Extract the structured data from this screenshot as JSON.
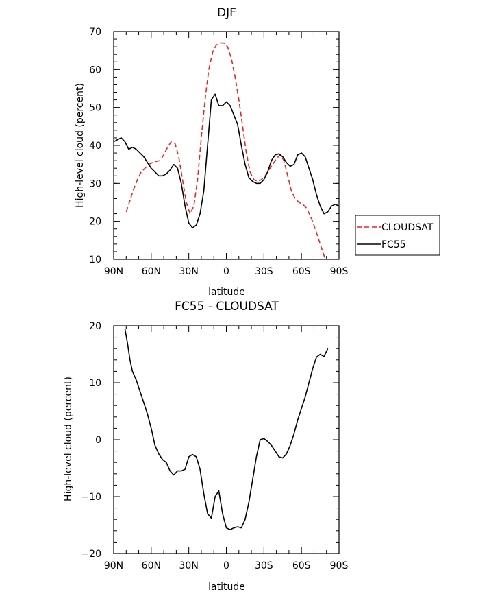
{
  "chart_data": [
    {
      "type": "line",
      "title": "DJF",
      "xlabel": "latitude",
      "ylabel": "High-level cloud (percent)",
      "xlim": [
        90,
        -90
      ],
      "ylim": [
        10,
        70
      ],
      "xticks": [
        90,
        60,
        30,
        0,
        -30,
        -60,
        -90
      ],
      "xtick_labels": [
        "90N",
        "60N",
        "30N",
        "0",
        "30S",
        "60S",
        "90S"
      ],
      "yticks": [
        10,
        20,
        30,
        40,
        50,
        60,
        70
      ],
      "ytick_labels": [
        "10",
        "20",
        "30",
        "40",
        "50",
        "60",
        "70"
      ],
      "grid": false,
      "legend": "right",
      "series": [
        {
          "name": "CLOUDSAT",
          "color": "#e8242a",
          "style": "dashed",
          "x": [
            80,
            77,
            74,
            71,
            68,
            65,
            62,
            59,
            56,
            53,
            50,
            47,
            44,
            41,
            38,
            35,
            32,
            29,
            26,
            23,
            20,
            17,
            14,
            11,
            8,
            5,
            2,
            -1,
            -4,
            -7,
            -10,
            -13,
            -16,
            -19,
            -22,
            -25,
            -28,
            -31,
            -34,
            -37,
            -40,
            -43,
            -46,
            -49,
            -52,
            -55,
            -58,
            -61,
            -64,
            -67,
            -70,
            -73,
            -76,
            -79,
            -81
          ],
          "y": [
            22.5,
            25.5,
            28.5,
            31,
            33,
            34,
            35,
            35.5,
            35.8,
            36,
            37.5,
            39.5,
            41,
            40.5,
            37,
            31,
            25,
            22,
            24,
            31,
            42,
            52,
            60,
            64.5,
            66.5,
            67,
            67,
            66,
            63,
            58,
            52,
            45,
            38,
            33,
            31,
            30.5,
            31,
            32,
            33.5,
            35,
            36.5,
            37.5,
            36,
            32,
            28,
            26,
            25,
            24.5,
            23.5,
            21.5,
            19,
            16,
            13,
            10,
            9
          ]
        },
        {
          "name": "FC55",
          "color": "#000000",
          "style": "solid",
          "x": [
            90,
            87,
            84,
            81,
            78,
            75,
            72,
            69,
            66,
            63,
            60,
            57,
            54,
            51,
            48,
            45,
            42,
            39,
            36,
            33,
            30,
            27,
            24,
            21,
            18,
            15,
            12,
            9,
            6,
            3,
            0,
            -3,
            -6,
            -9,
            -12,
            -15,
            -18,
            -21,
            -24,
            -27,
            -30,
            -33,
            -36,
            -39,
            -42,
            -45,
            -48,
            -51,
            -54,
            -57,
            -60,
            -63,
            -66,
            -69,
            -72,
            -75,
            -78,
            -81,
            -84,
            -87,
            -90
          ],
          "y": [
            41,
            41.5,
            42,
            41,
            39,
            39.5,
            39,
            38,
            37,
            35.5,
            34,
            33,
            32,
            32,
            32.5,
            33.5,
            35,
            34,
            30,
            24,
            19.5,
            18.3,
            19,
            22,
            28,
            40,
            52,
            53.5,
            50.5,
            50.5,
            51.5,
            50.5,
            48,
            45.5,
            40,
            35,
            31.5,
            30.5,
            30,
            30,
            31,
            33,
            36,
            37.5,
            37.8,
            37,
            35.5,
            34.5,
            35,
            37.5,
            38,
            37,
            34,
            31,
            27,
            24,
            22,
            22.5,
            24,
            24.5,
            24
          ]
        }
      ]
    },
    {
      "type": "line",
      "title": "FC55 - CLOUDSAT",
      "xlabel": "latitude",
      "ylabel": "High-level cloud (percent)",
      "xlim": [
        90,
        -90
      ],
      "ylim": [
        -20,
        20
      ],
      "xticks": [
        90,
        60,
        30,
        0,
        -30,
        -60,
        -90
      ],
      "xtick_labels": [
        "90N",
        "60N",
        "30N",
        "0",
        "30S",
        "60S",
        "90S"
      ],
      "yticks": [
        -20,
        -10,
        0,
        10,
        20
      ],
      "ytick_labels": [
        "−20",
        "−10",
        "0",
        "10",
        "20"
      ],
      "grid": false,
      "series": [
        {
          "color": "#000000",
          "style": "solid",
          "x": [
            81,
            79,
            77,
            75,
            72,
            69,
            66,
            63,
            60,
            57,
            54,
            51,
            48,
            45,
            42,
            39,
            36,
            33,
            30,
            27,
            24,
            21,
            18,
            15,
            12,
            9,
            6,
            3,
            0,
            -3,
            -6,
            -9,
            -12,
            -15,
            -18,
            -21,
            -24,
            -27,
            -30,
            -33,
            -36,
            -39,
            -42,
            -45,
            -48,
            -51,
            -54,
            -57,
            -60,
            -63,
            -66,
            -69,
            -72,
            -75,
            -78,
            -81
          ],
          "y": [
            19.5,
            17,
            14,
            12,
            10.5,
            8.5,
            6.5,
            4.5,
            2,
            -1,
            -2.5,
            -3.5,
            -4,
            -5.5,
            -6.2,
            -5.5,
            -5.5,
            -5.2,
            -3,
            -2.6,
            -3,
            -5.2,
            -9.5,
            -13,
            -13.8,
            -10,
            -9,
            -13,
            -15.5,
            -15.8,
            -15.5,
            -15.3,
            -15.5,
            -14,
            -11,
            -7,
            -3,
            0,
            0.2,
            -0.3,
            -1,
            -2,
            -3,
            -3.2,
            -2.5,
            -1,
            1,
            3.5,
            5.5,
            7.5,
            10,
            12.5,
            14.5,
            15,
            14.6,
            16
          ]
        }
      ]
    }
  ],
  "legend": {
    "items": [
      {
        "name": "CLOUDSAT",
        "color": "#e8242a",
        "style": "dashed"
      },
      {
        "name": "FC55",
        "color": "#000000",
        "style": "solid"
      }
    ]
  }
}
